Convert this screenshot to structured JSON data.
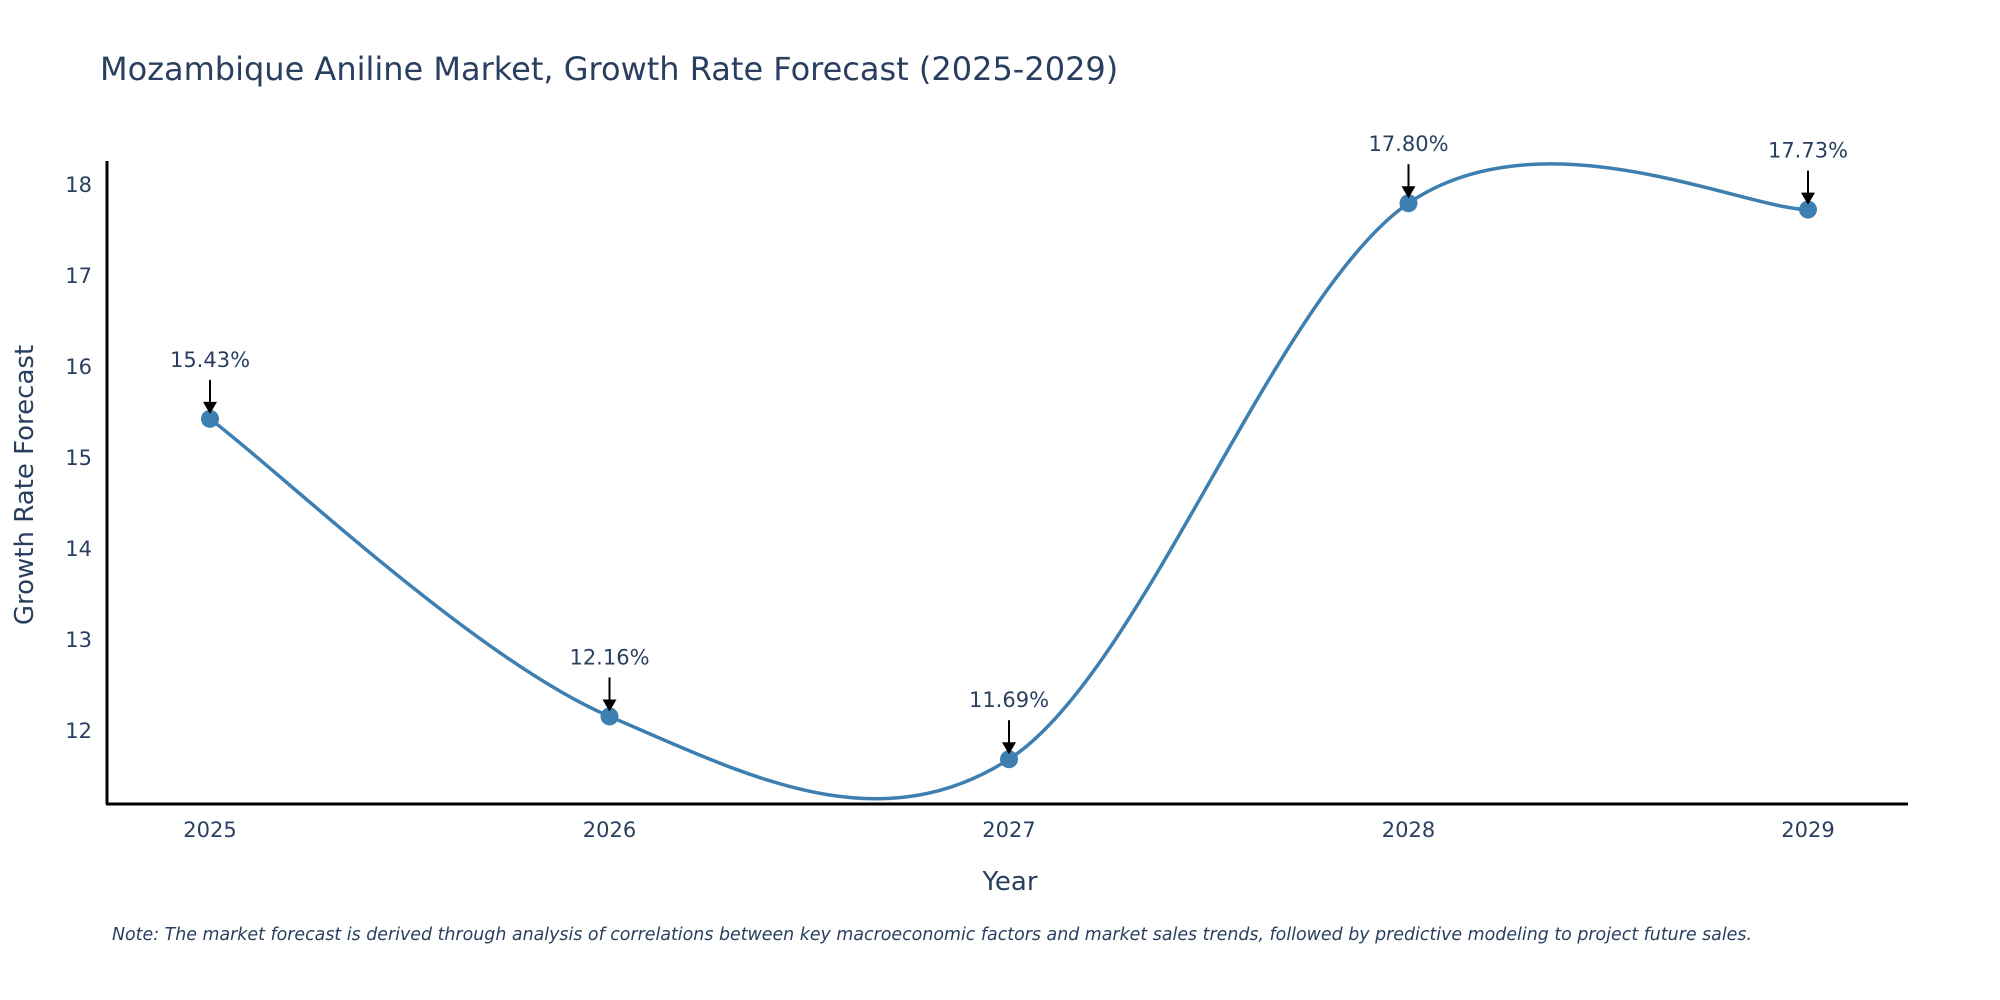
{
  "chart_data": {
    "type": "line",
    "title": "Mozambique Aniline Market, Growth Rate Forecast (2025-2029)",
    "xlabel": "Year",
    "ylabel": "Growth Rate Forecast",
    "categories": [
      "2025",
      "2026",
      "2027",
      "2028",
      "2029"
    ],
    "values": [
      15.43,
      12.16,
      11.69,
      17.8,
      17.73
    ],
    "data_labels": [
      "15.43%",
      "12.16%",
      "11.69%",
      "17.80%",
      "17.73%"
    ],
    "y_ticks": [
      12,
      13,
      14,
      15,
      16,
      17,
      18
    ],
    "ylim": [
      11.17,
      18.27
    ],
    "line_shape": "spline",
    "grid": false,
    "colors": {
      "line": "#3d7fb1",
      "marker": "#3d7fb1",
      "axis": "#000000",
      "text": "#2a3f5f"
    }
  },
  "note": "Note: The market forecast is derived through analysis of correlations between key macroeconomic factors and market sales trends, followed by predictive modeling to project future sales."
}
